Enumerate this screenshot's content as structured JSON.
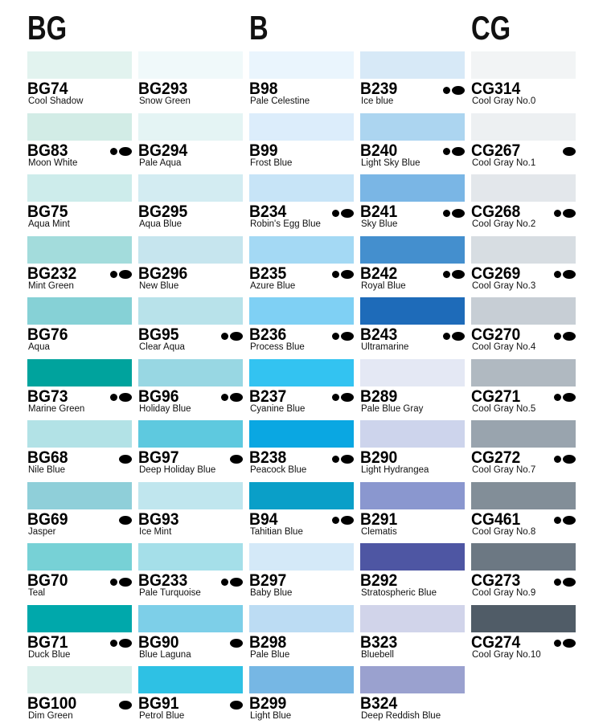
{
  "headings": [
    "BG",
    "B",
    "CG"
  ],
  "columns": [
    [
      {
        "code": "BG74",
        "name": "Cool Shadow",
        "color": "#e2f3ef",
        "dots": ""
      },
      {
        "code": "BG83",
        "name": "Moon White",
        "color": "#d2ece6",
        "dots": "●⬬"
      },
      {
        "code": "BG75",
        "name": "Aqua Mint",
        "color": "#cdeceb",
        "dots": ""
      },
      {
        "code": "BG232",
        "name": "Mint Green",
        "color": "#a3dcdc",
        "dots": "●⬬"
      },
      {
        "code": "BG76",
        "name": "Aqua",
        "color": "#86d1d6",
        "dots": ""
      },
      {
        "code": "BG73",
        "name": "Marine Green",
        "color": "#00a39d",
        "dots": "●⬬"
      },
      {
        "code": "BG68",
        "name": "Nile Blue",
        "color": "#b2e2e6",
        "dots": "⬬"
      },
      {
        "code": "BG69",
        "name": "Jasper",
        "color": "#8fcfd9",
        "dots": "⬬"
      },
      {
        "code": "BG70",
        "name": "Teal",
        "color": "#77d1d6",
        "dots": "●⬬"
      },
      {
        "code": "BG71",
        "name": "Duck Blue",
        "color": "#00a8ab",
        "dots": "●⬬"
      },
      {
        "code": "BG100",
        "name": "Dim Green",
        "color": "#d8efeb",
        "dots": "⬬"
      }
    ],
    [
      {
        "code": "BG293",
        "name": "Snow Green",
        "color": "#f0f9fa",
        "dots": ""
      },
      {
        "code": "BG294",
        "name": "Pale Aqua",
        "color": "#e4f4f4",
        "dots": ""
      },
      {
        "code": "BG295",
        "name": "Aqua Blue",
        "color": "#d3ecf2",
        "dots": ""
      },
      {
        "code": "BG296",
        "name": "New Blue",
        "color": "#c6e5ee",
        "dots": ""
      },
      {
        "code": "BG95",
        "name": "Clear Aqua",
        "color": "#b8e2ea",
        "dots": "●⬬"
      },
      {
        "code": "BG96",
        "name": "Holiday Blue",
        "color": "#98d7e3",
        "dots": "●⬬"
      },
      {
        "code": "BG97",
        "name": "Deep Holiday Blue",
        "color": "#5ec9df",
        "dots": "⬬"
      },
      {
        "code": "BG93",
        "name": "Ice Mint",
        "color": "#c0e6ee",
        "dots": ""
      },
      {
        "code": "BG233",
        "name": "Pale Turquoise",
        "color": "#a5dfe9",
        "dots": "●⬬"
      },
      {
        "code": "BG90",
        "name": "Blue Laguna",
        "color": "#7dcfe8",
        "dots": "⬬"
      },
      {
        "code": "BG91",
        "name": "Petrol Blue",
        "color": "#2ec1e4",
        "dots": "⬬"
      }
    ],
    [
      {
        "code": "B98",
        "name": "Pale Celestine",
        "color": "#eaf5fd",
        "dots": ""
      },
      {
        "code": "B99",
        "name": "Frost Blue",
        "color": "#dcedfb",
        "dots": ""
      },
      {
        "code": "B234",
        "name": "Robin's Egg Blue",
        "color": "#c7e4f7",
        "dots": "●⬬"
      },
      {
        "code": "B235",
        "name": "Azure Blue",
        "color": "#a4d9f4",
        "dots": "●⬬"
      },
      {
        "code": "B236",
        "name": "Process Blue",
        "color": "#7fd0f4",
        "dots": "●⬬"
      },
      {
        "code": "B237",
        "name": "Cyanine Blue",
        "color": "#33c3f1",
        "dots": "●⬬"
      },
      {
        "code": "B238",
        "name": "Peacock Blue",
        "color": "#0aa7e2",
        "dots": "●⬬"
      },
      {
        "code": "B94",
        "name": "Tahitian Blue",
        "color": "#0a9fc8",
        "dots": "●⬬"
      },
      {
        "code": "B297",
        "name": "Baby Blue",
        "color": "#d4e9f8",
        "dots": ""
      },
      {
        "code": "B298",
        "name": "Pale Blue",
        "color": "#bcdcf3",
        "dots": ""
      },
      {
        "code": "B299",
        "name": "Light Blue",
        "color": "#76b7e4",
        "dots": ""
      }
    ],
    [
      {
        "code": "B239",
        "name": "Ice blue",
        "color": "#d7e9f7",
        "dots": "●⬬"
      },
      {
        "code": "B240",
        "name": "Light Sky Blue",
        "color": "#acd5f0",
        "dots": "●⬬"
      },
      {
        "code": "B241",
        "name": "Sky Blue",
        "color": "#7ab6e5",
        "dots": "●⬬"
      },
      {
        "code": "B242",
        "name": "Royal Blue",
        "color": "#448fce",
        "dots": "●⬬"
      },
      {
        "code": "B243",
        "name": "Ultramarine",
        "color": "#1e6bb9",
        "dots": "●⬬"
      },
      {
        "code": "B289",
        "name": "Pale Blue Gray",
        "color": "#e4e8f4",
        "dots": ""
      },
      {
        "code": "B290",
        "name": "Light Hydrangea",
        "color": "#cdd4ec",
        "dots": ""
      },
      {
        "code": "B291",
        "name": "Clematis",
        "color": "#8a97cf",
        "dots": ""
      },
      {
        "code": "B292",
        "name": "Stratospheric Blue",
        "color": "#4e56a3",
        "dots": ""
      },
      {
        "code": "B323",
        "name": "Bluebell",
        "color": "#d1d4ea",
        "dots": ""
      },
      {
        "code": "B324",
        "name": "Deep Reddish Blue",
        "color": "#9aa1cf",
        "dots": ""
      }
    ],
    [
      {
        "code": "CG314",
        "name": "Cool Gray No.0",
        "color": "#f2f4f5",
        "dots": ""
      },
      {
        "code": "CG267",
        "name": "Cool Gray No.1",
        "color": "#edf0f2",
        "dots": "⬬"
      },
      {
        "code": "CG268",
        "name": "Cool Gray No.2",
        "color": "#e3e7eb",
        "dots": "●⬬"
      },
      {
        "code": "CG269",
        "name": "Cool Gray No.3",
        "color": "#d7dde2",
        "dots": "●⬬"
      },
      {
        "code": "CG270",
        "name": "Cool Gray No.4",
        "color": "#c7ced5",
        "dots": "●⬬"
      },
      {
        "code": "CG271",
        "name": "Cool Gray No.5",
        "color": "#b0b9c1",
        "dots": "●⬬"
      },
      {
        "code": "CG272",
        "name": "Cool Gray No.7",
        "color": "#99a4ae",
        "dots": "●⬬"
      },
      {
        "code": "CG461",
        "name": "Cool Gray No.8",
        "color": "#828e98",
        "dots": "●⬬"
      },
      {
        "code": "CG273",
        "name": "Cool Gray No.9",
        "color": "#6c7883",
        "dots": "●⬬"
      },
      {
        "code": "CG274",
        "name": "Cool Gray No.10",
        "color": "#505c67",
        "dots": "●⬬"
      }
    ]
  ]
}
